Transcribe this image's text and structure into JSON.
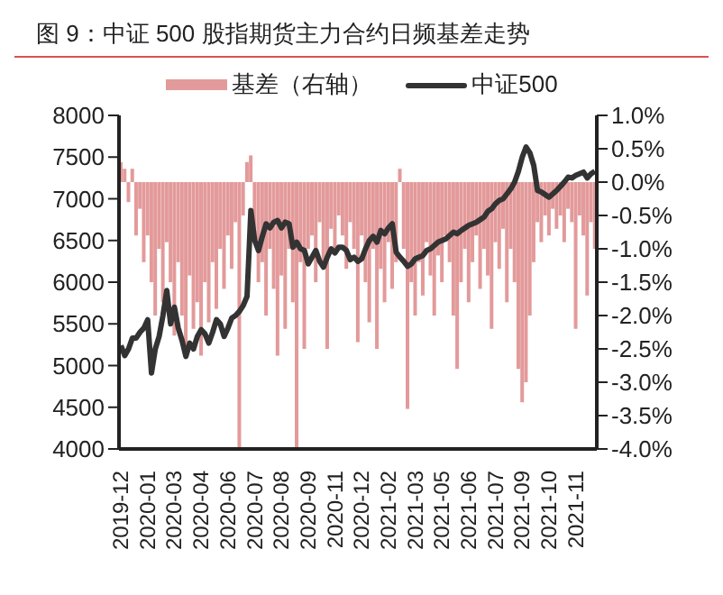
{
  "chart_data": {
    "type": "bar",
    "title": "图 9：中证 500 股指期货主力合约日频基差走势",
    "categories": [
      "2019-12",
      null,
      null,
      null,
      null,
      null,
      null,
      "2020-01",
      null,
      null,
      null,
      null,
      null,
      null,
      "2020-03",
      null,
      null,
      null,
      null,
      null,
      null,
      "2020-04",
      null,
      null,
      null,
      null,
      null,
      null,
      "2020-06",
      null,
      null,
      null,
      null,
      null,
      null,
      "2020-07",
      null,
      null,
      null,
      null,
      null,
      null,
      "2020-08",
      null,
      null,
      null,
      null,
      null,
      null,
      "2020-09",
      null,
      null,
      null,
      null,
      null,
      null,
      "2020-11",
      null,
      null,
      null,
      null,
      null,
      null,
      "2020-12",
      null,
      null,
      null,
      null,
      null,
      null,
      "2021-02",
      null,
      null,
      null,
      null,
      null,
      null,
      "2021-03",
      null,
      null,
      null,
      null,
      null,
      null,
      "2021-05",
      null,
      null,
      null,
      null,
      null,
      null,
      "2021-06",
      null,
      null,
      null,
      null,
      null,
      null,
      "2021-07",
      null,
      null,
      null,
      null,
      null,
      null,
      "2021-09",
      null,
      null,
      null,
      null,
      null,
      null,
      "2021-10",
      null,
      null,
      null,
      null,
      null,
      null,
      "2021-11",
      null,
      null,
      null,
      null,
      null
    ],
    "series": [
      {
        "name": "基差（右轴）",
        "axis": "y2",
        "color": "#e39a9a",
        "values": [
          0.3,
          0.2,
          -0.3,
          0.2,
          -0.8,
          -0.4,
          -1.2,
          -0.8,
          -1.5,
          -2.0,
          -1.0,
          -1.8,
          -0.9,
          -1.5,
          -2.3,
          -1.2,
          -2.0,
          -2.5,
          -1.4,
          -2.2,
          -1.8,
          -2.6,
          -1.5,
          -2.1,
          -1.2,
          -1.9,
          -1.0,
          -1.6,
          -0.8,
          -1.3,
          -0.6,
          -4.0,
          -0.5,
          0.3,
          0.4,
          -0.8,
          -1.5,
          -1.2,
          -2.0,
          -1.0,
          -1.6,
          -2.6,
          -1.4,
          -2.2,
          -1.0,
          -1.8,
          -4.0,
          -1.2,
          -2.5,
          -1.0,
          -0.8,
          -1.5,
          -0.6,
          -1.2,
          -2.5,
          -0.7,
          -1.0,
          -0.5,
          -0.8,
          -1.3,
          -0.6,
          -1.0,
          -2.4,
          -0.8,
          -1.5,
          -2.1,
          -1.0,
          -2.5,
          -1.3,
          -1.8,
          -0.9,
          -1.6,
          -1.2,
          0.2,
          -1.0,
          -3.4,
          -1.5,
          -2.0,
          -1.2,
          -1.7,
          -0.9,
          -1.4,
          -2.0,
          -1.1,
          -1.5,
          -0.8,
          -1.2,
          -2.0,
          -2.8,
          -1.5,
          -1.0,
          -1.8,
          -1.2,
          -0.8,
          -1.6,
          -1.0,
          -1.4,
          -2.2,
          -0.9,
          -1.3,
          -0.7,
          -1.8,
          -1.0,
          -1.5,
          -2.8,
          -3.3,
          -3.0,
          -2.0,
          -1.2,
          -0.6,
          -0.9,
          -0.5,
          -0.8,
          -0.4,
          -0.7,
          -0.5,
          -0.9,
          -0.4,
          -0.6,
          -2.2,
          -0.5,
          -0.8,
          -1.7,
          -0.6,
          -1.0
        ]
      },
      {
        "name": "中证500",
        "type": "line",
        "color": "#333333",
        "values": [
          5240,
          5120,
          5200,
          5330,
          5330,
          5400,
          5450,
          5550,
          4910,
          5200,
          5350,
          5600,
          5900,
          5500,
          5700,
          5450,
          5300,
          5110,
          5270,
          5200,
          5350,
          5430,
          5380,
          5270,
          5400,
          5550,
          5500,
          5350,
          5450,
          5570,
          5600,
          5650,
          5720,
          5830,
          6860,
          6500,
          6380,
          6550,
          6700,
          6650,
          6720,
          6740,
          6650,
          6720,
          6700,
          6420,
          6480,
          6400,
          6380,
          6220,
          6300,
          6380,
          6250,
          6180,
          6300,
          6400,
          6350,
          6420,
          6420,
          6380,
          6270,
          6300,
          6250,
          6280,
          6400,
          6500,
          6550,
          6480,
          6620,
          6580,
          6650,
          6700,
          6360,
          6300,
          6250,
          6190,
          6220,
          6280,
          6300,
          6320,
          6380,
          6400,
          6440,
          6480,
          6500,
          6520,
          6560,
          6600,
          6580,
          6620,
          6650,
          6680,
          6700,
          6720,
          6750,
          6780,
          6850,
          6880,
          6940,
          6980,
          7000,
          7060,
          7120,
          7200,
          7330,
          7500,
          7620,
          7550,
          7400,
          7100,
          7080,
          7050,
          7020,
          7060,
          7100,
          7150,
          7200,
          7260,
          7250,
          7280,
          7300,
          7320,
          7250,
          7300,
          7330
        ]
      }
    ],
    "ylim": [
      4000,
      8000
    ],
    "yticks": [
      4000,
      4500,
      5000,
      5500,
      6000,
      6500,
      7000,
      7500,
      8000
    ],
    "y2lim": [
      -4,
      1
    ],
    "y2ticks": [
      {
        "value": 1,
        "label": "1.0%"
      },
      {
        "value": 0.5,
        "label": "0.5%"
      },
      {
        "value": 0,
        "label": "0.0%"
      },
      {
        "value": -0.5,
        "label": "-0.5%"
      },
      {
        "value": -1,
        "label": "-1.0%"
      },
      {
        "value": -1.5,
        "label": "-1.5%"
      },
      {
        "value": -2,
        "label": "-2.0%"
      },
      {
        "value": -2.5,
        "label": "-2.5%"
      },
      {
        "value": -3,
        "label": "-3.0%"
      },
      {
        "value": -3.5,
        "label": "-3.5%"
      },
      {
        "value": -4,
        "label": "-4.0%"
      }
    ],
    "legend": "top",
    "grid": false,
    "marker": "none"
  }
}
